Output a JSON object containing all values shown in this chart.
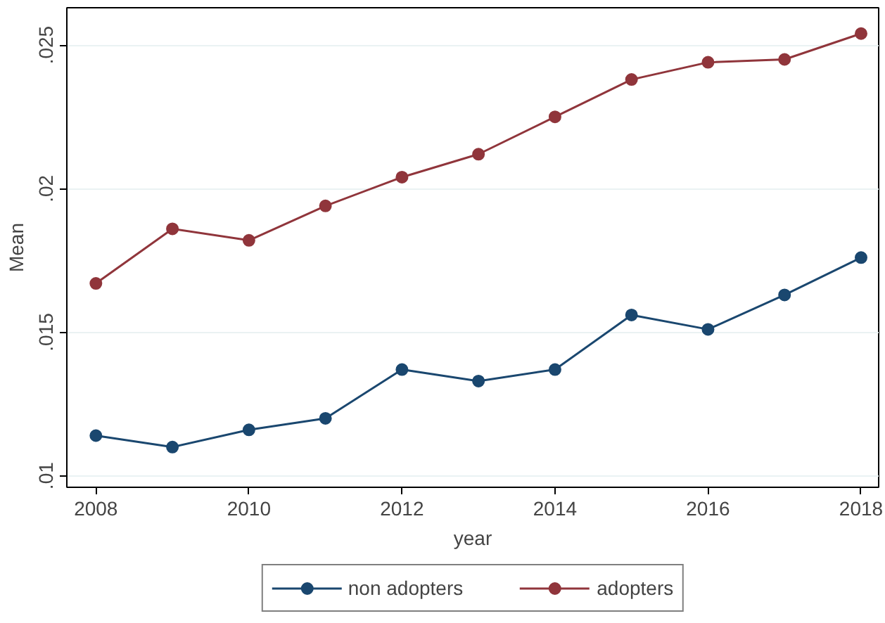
{
  "chart_data": {
    "type": "line",
    "xlabel": "year",
    "ylabel": "Mean",
    "x": [
      2008,
      2009,
      2010,
      2011,
      2012,
      2013,
      2014,
      2015,
      2016,
      2017,
      2018
    ],
    "series": [
      {
        "name": "non adopters",
        "color": "#1a476f",
        "values": [
          0.0114,
          0.011,
          0.0116,
          0.012,
          0.0137,
          0.0133,
          0.0137,
          0.0156,
          0.0151,
          0.0163,
          0.0176
        ]
      },
      {
        "name": "adopters",
        "color": "#90353b",
        "values": [
          0.0167,
          0.0186,
          0.0182,
          0.0194,
          0.0204,
          0.0212,
          0.0225,
          0.0238,
          0.0244,
          0.0245,
          0.0254
        ]
      }
    ],
    "xlim": [
      2007.62,
      2018.23
    ],
    "ylim": [
      0.0096,
      0.0263
    ],
    "xticks": [
      2008,
      2010,
      2012,
      2014,
      2016,
      2018
    ],
    "yticks": [
      {
        "value": 0.01,
        "label": ".01"
      },
      {
        "value": 0.015,
        "label": ".015"
      },
      {
        "value": 0.02,
        "label": ".02"
      },
      {
        "value": 0.025,
        "label": ".025"
      }
    ],
    "grid": "y",
    "legend": "bottom",
    "marker": "circle",
    "line_style": "solid"
  }
}
